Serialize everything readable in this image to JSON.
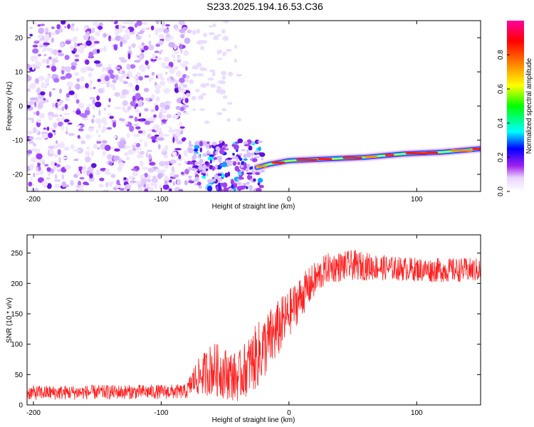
{
  "title": "S233.2025.194.16.53.C36",
  "chart_data": [
    {
      "type": "heatmap",
      "xlabel": "Height of straight line (km)",
      "ylabel": "Frequency (Hz)",
      "xlim": [
        -205,
        150
      ],
      "ylim": [
        -25,
        25
      ],
      "xticks": [
        -200,
        -100,
        0,
        100
      ],
      "yticks": [
        -20,
        -10,
        0,
        10,
        20
      ],
      "colorbar": {
        "label": "Normalized spectral amplitude",
        "range": [
          0,
          1
        ],
        "ticks": [
          0.0,
          0.2,
          0.4,
          0.6,
          0.8
        ],
        "tick_labels": [
          "0.0",
          "0.2",
          "0.4",
          "0.6",
          "0.8"
        ],
        "colors": [
          "#ffffff",
          "#e8d4ff",
          "#a020f0",
          "#0000ff",
          "#00ffff",
          "#00ff00",
          "#ffff00",
          "#ff8000",
          "#ff0000",
          "#ff00a0"
        ]
      },
      "ridge": {
        "description_points": [
          [
            -25,
            -18
          ],
          [
            -15,
            -17
          ],
          [
            0,
            -16
          ],
          [
            30,
            -15.5
          ],
          [
            60,
            -15
          ],
          [
            90,
            -14
          ],
          [
            120,
            -13.5
          ],
          [
            150,
            -12.5
          ]
        ]
      },
      "noise_region": {
        "x": [
          -205,
          -78
        ],
        "y": [
          -25,
          25
        ]
      },
      "burst_region": {
        "x": [
          -78,
          -20
        ],
        "y": [
          -25,
          -10
        ]
      }
    },
    {
      "type": "line",
      "xlabel": "Height of straight line (km)",
      "ylabel": "SNR (10 * v/v)",
      "xlim": [
        -205,
        150
      ],
      "ylim": [
        0,
        280
      ],
      "xticks": [
        -200,
        -100,
        0,
        100
      ],
      "yticks": [
        0,
        50,
        100,
        150,
        200,
        250
      ],
      "color": "#ff2020",
      "envelope": {
        "x": [
          -205,
          -80,
          -75,
          -60,
          -40,
          -25,
          -10,
          0,
          10,
          20,
          30,
          50,
          80,
          110,
          150
        ],
        "mean": [
          20,
          22,
          40,
          60,
          45,
          80,
          120,
          150,
          180,
          205,
          225,
          230,
          225,
          222,
          222
        ],
        "spread": [
          12,
          12,
          25,
          45,
          40,
          55,
          50,
          40,
          35,
          30,
          25,
          25,
          20,
          20,
          20
        ]
      }
    }
  ]
}
